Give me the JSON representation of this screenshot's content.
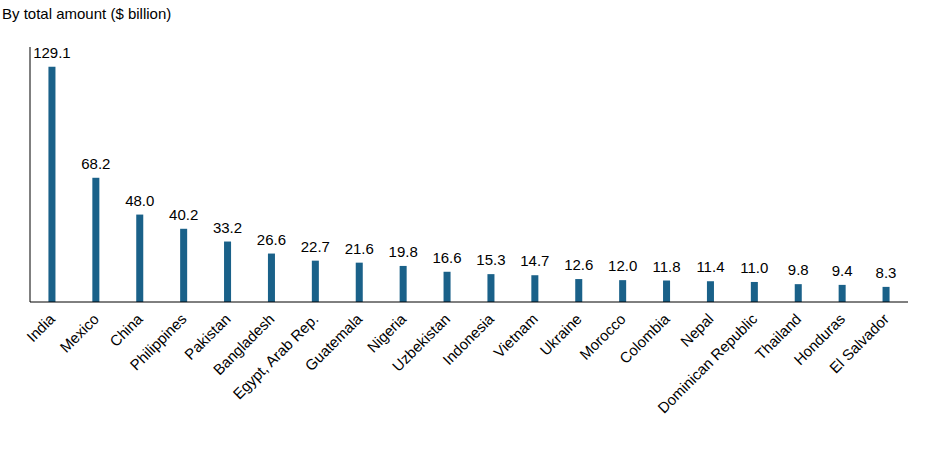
{
  "chart_data": {
    "type": "bar",
    "title": "By total amount ($ billion)",
    "categories": [
      "India",
      "Mexico",
      "China",
      "Philippines",
      "Pakistan",
      "Bangladesh",
      "Egypt, Arab Rep.",
      "Guatemala",
      "Nigeria",
      "Uzbekistan",
      "Indonesia",
      "Vietnam",
      "Ukraine",
      "Morocco",
      "Colombia",
      "Nepal",
      "Dominican Republic",
      "Thailand",
      "Honduras",
      "El Salvador"
    ],
    "values": [
      129.1,
      68.2,
      48.0,
      40.2,
      33.2,
      26.6,
      22.7,
      21.6,
      19.8,
      16.6,
      15.3,
      14.7,
      12.6,
      12.0,
      11.8,
      11.4,
      11.0,
      9.8,
      9.4,
      8.3
    ],
    "value_labels": [
      "129.1",
      "68.2",
      "48.0",
      "40.2",
      "33.2",
      "26.6",
      "22.7",
      "21.6",
      "19.8",
      "16.6",
      "15.3",
      "14.7",
      "12.6",
      "12.0",
      "11.8",
      "11.4",
      "11.0",
      "9.8",
      "9.4",
      "8.3"
    ],
    "color": "#1a6189",
    "ylim": [
      0,
      140
    ],
    "grid": false,
    "data_labels": true,
    "tick_labels": "x"
  }
}
